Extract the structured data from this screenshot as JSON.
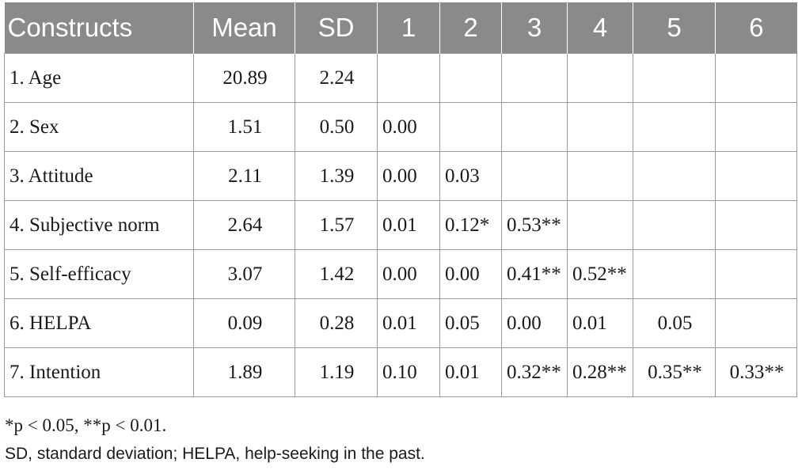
{
  "headers": [
    "Constructs",
    "Mean",
    "SD",
    "1",
    "2",
    "3",
    "4",
    "5",
    "6"
  ],
  "rows": [
    {
      "construct": "1. Age",
      "mean": "20.89",
      "sd": "2.24",
      "c1": "",
      "c2": "",
      "c3": "",
      "c4": "",
      "c5": "",
      "c6": ""
    },
    {
      "construct": "2. Sex",
      "mean": "1.51",
      "sd": "0.50",
      "c1": "0.00",
      "c2": "",
      "c3": "",
      "c4": "",
      "c5": "",
      "c6": ""
    },
    {
      "construct": "3. Attitude",
      "mean": "2.11",
      "sd": "1.39",
      "c1": "0.00",
      "c2": "0.03",
      "c3": "",
      "c4": "",
      "c5": "",
      "c6": ""
    },
    {
      "construct": "4. Subjective norm",
      "mean": "2.64",
      "sd": "1.57",
      "c1": "0.01",
      "c2": "0.12*",
      "c3": "0.53**",
      "c4": "",
      "c5": "",
      "c6": ""
    },
    {
      "construct": "5. Self-efficacy",
      "mean": "3.07",
      "sd": "1.42",
      "c1": "0.00",
      "c2": "0.00",
      "c3": "0.41**",
      "c4": "0.52**",
      "c5": "",
      "c6": ""
    },
    {
      "construct": "6. HELPA",
      "mean": "0.09",
      "sd": "0.28",
      "c1": "0.01",
      "c2": "0.05",
      "c3": "0.00",
      "c4": "0.01",
      "c5": "0.05",
      "c6": ""
    },
    {
      "construct": "7. Intention",
      "mean": "1.89",
      "sd": "1.19",
      "c1": "0.10",
      "c2": "0.01",
      "c3": "0.32**",
      "c4": "0.28**",
      "c5": "0.35**",
      "c6": "0.33**"
    }
  ],
  "notes": {
    "significance": "*p < 0.05, **p < 0.01.",
    "abbreviations": "SD, standard deviation; HELPA, help-seeking in the past."
  }
}
